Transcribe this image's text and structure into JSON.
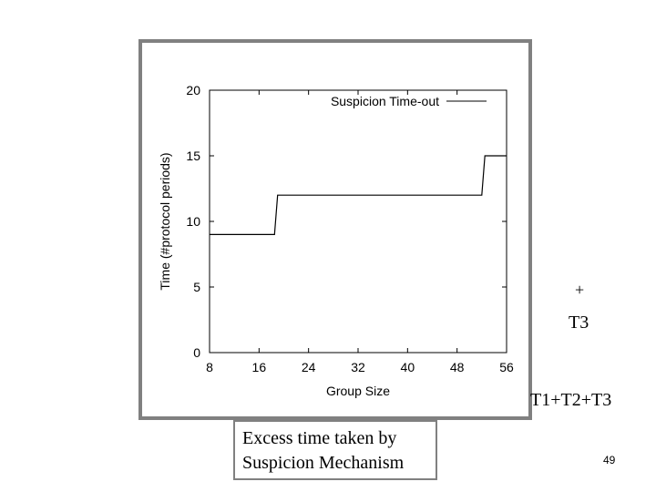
{
  "chart_data": {
    "type": "line",
    "title": "",
    "xlabel": "Group Size",
    "ylabel": "Time (#protocol periods)",
    "xlim": [
      8,
      56
    ],
    "ylim": [
      0,
      20
    ],
    "x_ticks": [
      8,
      16,
      24,
      32,
      40,
      48,
      56
    ],
    "y_ticks": [
      0,
      5,
      10,
      15,
      20
    ],
    "grid": false,
    "legend_position": "top-right",
    "series": [
      {
        "name": "Suspicion Time-out",
        "color": "#000000",
        "x": [
          8,
          18.5,
          19,
          52,
          52.5,
          56
        ],
        "y": [
          9,
          9,
          12,
          12,
          15,
          15
        ]
      }
    ]
  },
  "annotations": {
    "plus": "+",
    "t3": "T3",
    "sum": "T1+T2+T3"
  },
  "caption": {
    "line1": "Excess time taken by",
    "line2": "Suspicion Mechanism"
  },
  "page_number": "49"
}
